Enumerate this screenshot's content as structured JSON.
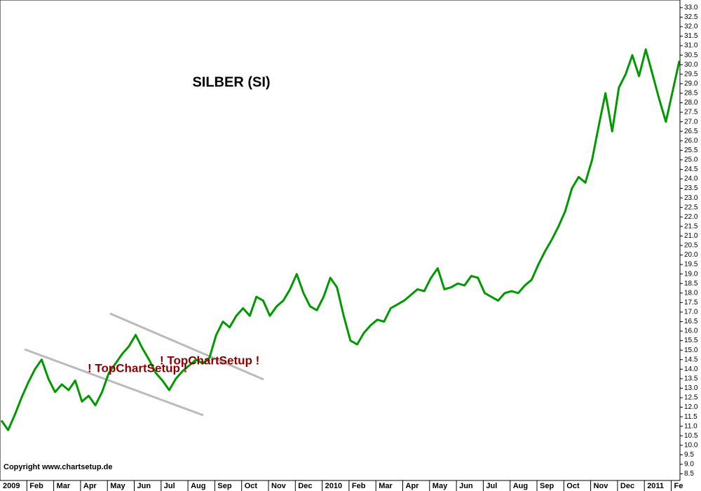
{
  "chart_data": {
    "type": "line",
    "title": "SILBER (SI)",
    "annotations": [
      "! TopChartSetup !",
      "! TopChartSetup !"
    ],
    "copyright": "Copyright www.chartsetup.de",
    "color": "#009900",
    "categories": [
      "2009",
      null,
      null,
      null,
      "Feb",
      null,
      null,
      null,
      "Mar",
      null,
      null,
      null,
      "Apr",
      null,
      null,
      null,
      "May",
      null,
      null,
      null,
      "Jun",
      null,
      null,
      null,
      "Jul",
      null,
      null,
      null,
      "Aug",
      null,
      null,
      null,
      "Sep",
      null,
      null,
      null,
      "Oct",
      null,
      null,
      null,
      "Nov",
      null,
      null,
      null,
      "Dec",
      null,
      null,
      null,
      "2010",
      null,
      null,
      null,
      "Feb",
      null,
      null,
      null,
      "Mar",
      null,
      null,
      null,
      "Apr",
      null,
      null,
      null,
      "May",
      null,
      null,
      null,
      "Jun",
      null,
      null,
      null,
      "Jul",
      null,
      null,
      null,
      "Aug",
      null,
      null,
      null,
      "Sep",
      null,
      null,
      null,
      "Oct",
      null,
      null,
      null,
      "Nov",
      null,
      null,
      null,
      "Dec",
      null,
      null,
      null,
      "2011",
      null,
      null,
      null,
      "Fe",
      null
    ],
    "values": [
      11.3,
      10.8,
      11.6,
      12.5,
      13.3,
      14.0,
      14.5,
      13.5,
      12.8,
      13.2,
      12.9,
      13.4,
      12.3,
      12.6,
      12.1,
      12.8,
      13.8,
      14.3,
      14.8,
      15.2,
      15.8,
      15.1,
      14.5,
      13.8,
      13.4,
      12.9,
      13.5,
      13.9,
      14.2,
      14.5,
      14.3,
      14.6,
      15.8,
      16.5,
      16.2,
      16.8,
      17.2,
      16.8,
      17.8,
      17.6,
      16.8,
      17.3,
      17.6,
      18.2,
      19.0,
      18.0,
      17.3,
      17.1,
      17.8,
      18.8,
      18.3,
      16.8,
      15.5,
      15.3,
      15.9,
      16.3,
      16.6,
      16.5,
      17.2,
      17.4,
      17.6,
      17.9,
      18.2,
      18.1,
      18.8,
      19.3,
      18.2,
      18.3,
      18.5,
      18.4,
      18.9,
      18.8,
      18.0,
      17.8,
      17.6,
      18.0,
      18.1,
      18.0,
      18.4,
      18.7,
      19.5,
      20.2,
      20.8,
      21.5,
      22.3,
      23.5,
      24.1,
      23.8,
      25.0,
      26.8,
      28.5,
      26.5,
      28.8,
      29.5,
      30.5,
      29.4,
      30.8,
      29.5,
      28.2,
      27.0,
      28.6,
      30.2
    ],
    "ylim": [
      8.15,
      33.4
    ],
    "yticks": [
      8.5,
      {
        "value": 9,
        "label": "9.0"
      },
      9.5,
      {
        "value": 10,
        "label": "10.0"
      },
      10.5,
      {
        "value": 11,
        "label": "11.0"
      },
      11.5,
      {
        "value": 12,
        "label": "12.0"
      },
      12.5,
      {
        "value": 13,
        "label": "13.0"
      },
      13.5,
      {
        "value": 14,
        "label": "14.0"
      },
      14.5,
      {
        "value": 15,
        "label": "15.0"
      },
      15.5,
      {
        "value": 16,
        "label": "16.0"
      },
      16.5,
      {
        "value": 17,
        "label": "17.0"
      },
      17.5,
      {
        "value": 18,
        "label": "18.0"
      },
      18.5,
      {
        "value": 19,
        "label": "19.0"
      },
      19.5,
      {
        "value": 20,
        "label": "20.0"
      },
      20.5,
      {
        "value": 21,
        "label": "21.0"
      },
      21.5,
      {
        "value": 22,
        "label": "22.0"
      },
      22.5,
      {
        "value": 23,
        "label": "23.0"
      },
      23.5,
      {
        "value": 24,
        "label": "24.0"
      },
      24.5,
      {
        "value": 25,
        "label": "25.0"
      },
      25.5,
      {
        "value": 26,
        "label": "26.0"
      },
      26.5,
      {
        "value": 27,
        "label": "27.0"
      },
      27.5,
      {
        "value": 28,
        "label": "28.0"
      },
      28.5,
      {
        "value": 29,
        "label": "29.0"
      },
      29.5,
      {
        "value": 30,
        "label": "30.0"
      },
      30.5,
      {
        "value": 31,
        "label": "31.0"
      },
      31.5,
      {
        "value": 32,
        "label": "32.0"
      },
      32.5,
      {
        "value": 33,
        "label": "33.0"
      }
    ],
    "grid": false
  }
}
